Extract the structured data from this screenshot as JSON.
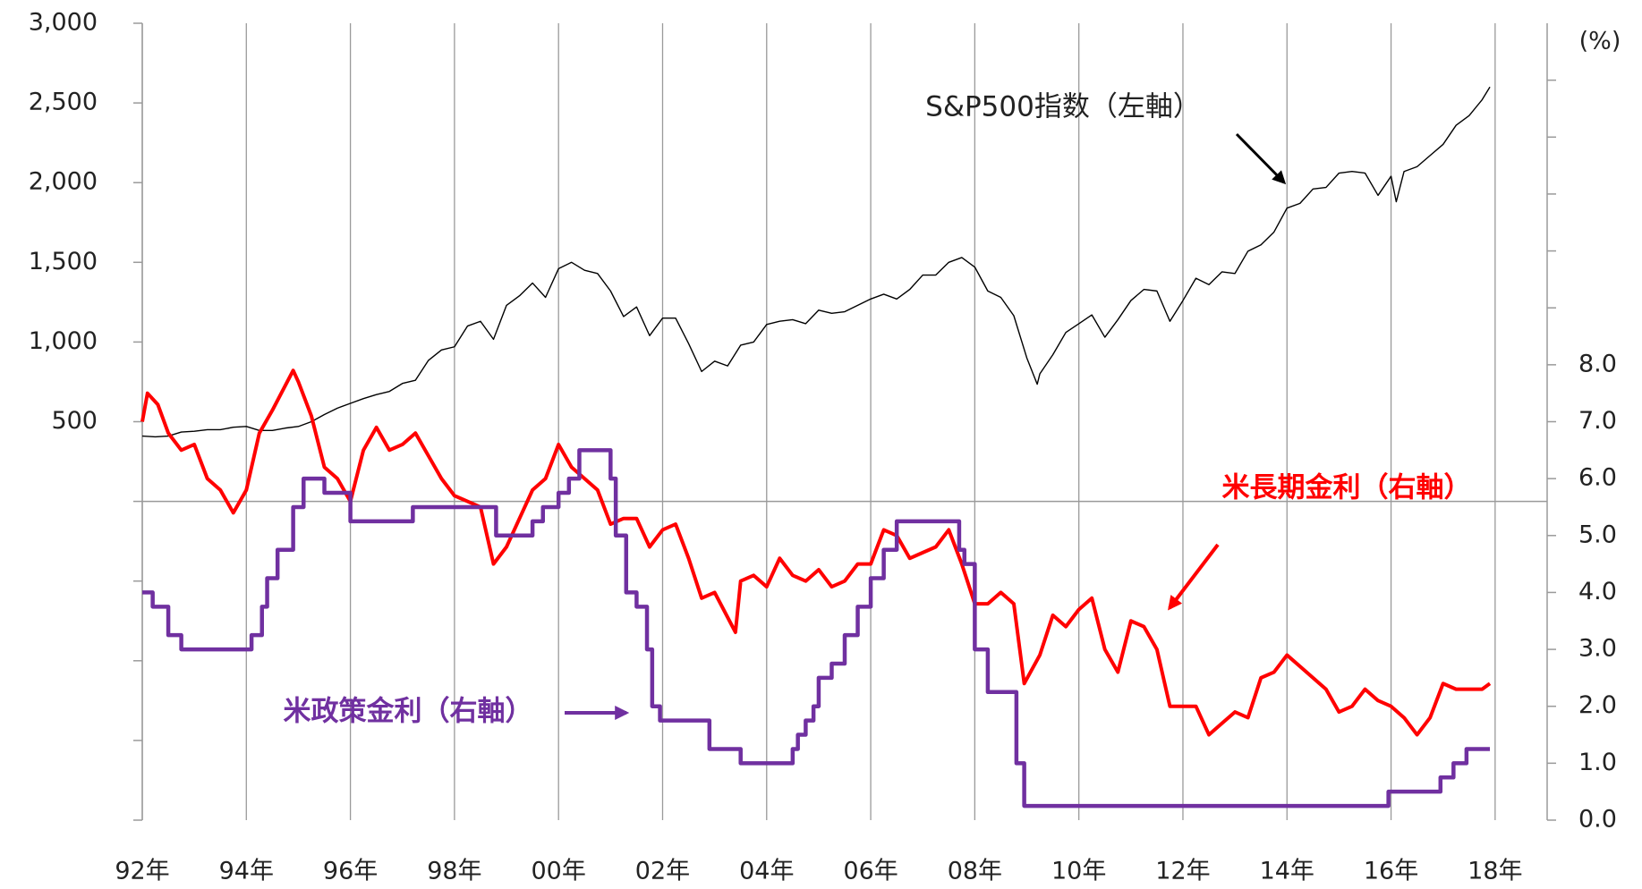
{
  "chart_data": {
    "type": "line",
    "xlim": [
      1992,
      2019
    ],
    "xticks": [
      {
        "value": 1992,
        "label": "92年"
      },
      {
        "value": 1994,
        "label": "94年"
      },
      {
        "value": 1996,
        "label": "96年"
      },
      {
        "value": 1998,
        "label": "98年"
      },
      {
        "value": 2000,
        "label": "00年"
      },
      {
        "value": 2002,
        "label": "02年"
      },
      {
        "value": 2004,
        "label": "04年"
      },
      {
        "value": 2006,
        "label": "06年"
      },
      {
        "value": 2008,
        "label": "08年"
      },
      {
        "value": 2010,
        "label": "10年"
      },
      {
        "value": 2012,
        "label": "12年"
      },
      {
        "value": 2014,
        "label": "14年"
      },
      {
        "value": 2016,
        "label": "16年"
      },
      {
        "value": 2018,
        "label": "18年"
      }
    ],
    "ylim": [
      -2000,
      3000
    ],
    "yticks": [
      500,
      {
        "value": 1000,
        "label": "1,000"
      },
      {
        "value": 1500,
        "label": "1,500"
      },
      {
        "value": 2000,
        "label": "2,000"
      },
      {
        "value": 2500,
        "label": "2,500"
      },
      {
        "value": 3000,
        "label": "3,000"
      }
    ],
    "yticks_unlabeled": [
      -2000,
      -1500,
      -1000,
      -500,
      0
    ],
    "y2lim": [
      0,
      14
    ],
    "y2label": "(%)",
    "y2ticks": [
      {
        "value": 0,
        "label": "0.0"
      },
      {
        "value": 1,
        "label": "1.0"
      },
      {
        "value": 2,
        "label": "2.0"
      },
      {
        "value": 3,
        "label": "3.0"
      },
      {
        "value": 4,
        "label": "4.0"
      },
      {
        "value": 5,
        "label": "5.0"
      },
      {
        "value": 6,
        "label": "6.0"
      },
      {
        "value": 7,
        "label": "7.0"
      },
      {
        "value": 8,
        "label": "8.0"
      }
    ],
    "y2ticks_unlabeled": [
      9,
      10,
      11,
      12,
      13
    ],
    "grid_x": true,
    "series": [
      {
        "name": "S&P500指数（左軸）",
        "color": "#000000",
        "axis": "y",
        "x": [
          1992,
          1992.25,
          1992.5,
          1992.75,
          1993,
          1993.25,
          1993.5,
          1993.75,
          1994,
          1994.25,
          1994.5,
          1994.75,
          1995,
          1995.25,
          1995.5,
          1995.75,
          1996,
          1996.25,
          1996.5,
          1996.75,
          1997,
          1997.25,
          1997.5,
          1997.75,
          1998,
          1998.25,
          1998.5,
          1998.75,
          1999,
          1999.25,
          1999.5,
          1999.75,
          2000,
          2000.25,
          2000.5,
          2000.75,
          2001,
          2001.25,
          2001.5,
          2001.75,
          2002,
          2002.25,
          2002.5,
          2002.75,
          2003,
          2003.25,
          2003.5,
          2003.75,
          2004,
          2004.25,
          2004.5,
          2004.75,
          2005,
          2005.25,
          2005.5,
          2005.75,
          2006,
          2006.25,
          2006.5,
          2006.75,
          2007,
          2007.25,
          2007.5,
          2007.75,
          2008,
          2008.25,
          2008.5,
          2008.75,
          2009,
          2009.2,
          2009.25,
          2009.5,
          2009.75,
          2010,
          2010.25,
          2010.5,
          2010.75,
          2011,
          2011.25,
          2011.5,
          2011.75,
          2012,
          2012.25,
          2012.5,
          2012.75,
          2013,
          2013.25,
          2013.5,
          2013.75,
          2014,
          2014.25,
          2014.5,
          2014.75,
          2015,
          2015.25,
          2015.5,
          2015.75,
          2016,
          2016.1,
          2016.25,
          2016.5,
          2016.75,
          2017,
          2017.25,
          2017.5,
          2017.75,
          2017.9
        ],
        "values": [
          410,
          405,
          410,
          435,
          440,
          450,
          450,
          465,
          470,
          445,
          445,
          460,
          470,
          500,
          545,
          585,
          615,
          645,
          670,
          690,
          740,
          760,
          885,
          950,
          970,
          1100,
          1130,
          1017,
          1230,
          1290,
          1370,
          1280,
          1460,
          1500,
          1450,
          1430,
          1320,
          1160,
          1220,
          1040,
          1150,
          1150,
          990,
          815,
          880,
          850,
          980,
          1000,
          1110,
          1130,
          1140,
          1115,
          1200,
          1180,
          1190,
          1230,
          1270,
          1300,
          1270,
          1330,
          1420,
          1420,
          1500,
          1530,
          1470,
          1320,
          1280,
          1165,
          900,
          735,
          800,
          920,
          1060,
          1115,
          1170,
          1030,
          1140,
          1260,
          1330,
          1320,
          1130,
          1260,
          1400,
          1360,
          1440,
          1430,
          1570,
          1610,
          1690,
          1840,
          1870,
          1960,
          1970,
          2060,
          2070,
          2060,
          1920,
          2040,
          1880,
          2070,
          2100,
          2170,
          2240,
          2360,
          2420,
          2520,
          2600
        ]
      },
      {
        "name": "米長期金利（右軸）",
        "color": "#ff0000",
        "axis": "y2",
        "x": [
          1992,
          1992.1,
          1992.3,
          1992.5,
          1992.75,
          1993,
          1993.25,
          1993.5,
          1993.75,
          1994,
          1994.25,
          1994.5,
          1994.9,
          1995,
          1995.25,
          1995.5,
          1995.75,
          1996,
          1996.25,
          1996.5,
          1996.75,
          1997,
          1997.25,
          1997.5,
          1997.75,
          1998,
          1998.25,
          1998.5,
          1998.75,
          1999,
          1999.25,
          1999.5,
          1999.75,
          2000,
          2000.25,
          2000.5,
          2000.75,
          2001,
          2001.25,
          2001.5,
          2001.75,
          2002,
          2002.25,
          2002.5,
          2002.75,
          2003,
          2003.4,
          2003.5,
          2003.75,
          2004,
          2004.25,
          2004.5,
          2004.75,
          2005,
          2005.25,
          2005.5,
          2005.75,
          2006,
          2006.25,
          2006.5,
          2006.75,
          2007,
          2007.25,
          2007.5,
          2007.75,
          2008,
          2008.25,
          2008.5,
          2008.75,
          2008.95,
          2009.25,
          2009.5,
          2009.75,
          2010,
          2010.25,
          2010.5,
          2010.75,
          2011,
          2011.25,
          2011.5,
          2011.75,
          2012,
          2012.25,
          2012.5,
          2012.75,
          2013,
          2013.25,
          2013.5,
          2013.75,
          2014,
          2014.25,
          2014.5,
          2014.75,
          2015,
          2015.25,
          2015.5,
          2015.75,
          2016,
          2016.25,
          2016.5,
          2016.75,
          2017,
          2017.25,
          2017.5,
          2017.75,
          2017.9
        ],
        "values": [
          7.0,
          7.5,
          7.3,
          6.8,
          6.5,
          6.6,
          6.0,
          5.8,
          5.4,
          5.8,
          6.8,
          7.2,
          7.9,
          7.7,
          7.1,
          6.2,
          6.0,
          5.6,
          6.5,
          6.9,
          6.5,
          6.6,
          6.8,
          6.4,
          6.0,
          5.7,
          5.6,
          5.5,
          4.5,
          4.8,
          5.3,
          5.8,
          6.0,
          6.6,
          6.2,
          6.0,
          5.8,
          5.2,
          5.3,
          5.3,
          4.8,
          5.1,
          5.2,
          4.6,
          3.9,
          4.0,
          3.3,
          4.2,
          4.3,
          4.1,
          4.6,
          4.3,
          4.2,
          4.4,
          4.1,
          4.2,
          4.5,
          4.5,
          5.1,
          5.0,
          4.6,
          4.7,
          4.8,
          5.1,
          4.5,
          3.8,
          3.8,
          4.0,
          3.8,
          2.4,
          2.9,
          3.6,
          3.4,
          3.7,
          3.9,
          3.0,
          2.6,
          3.5,
          3.4,
          3.0,
          2.0,
          2.0,
          2.0,
          1.5,
          1.7,
          1.9,
          1.8,
          2.5,
          2.6,
          2.9,
          2.7,
          2.5,
          2.3,
          1.9,
          2.0,
          2.3,
          2.1,
          2.0,
          1.8,
          1.5,
          1.8,
          2.4,
          2.3,
          2.3,
          2.3,
          2.4
        ]
      },
      {
        "name": "米政策金利（右軸）",
        "color": "#7030a0",
        "axis": "y2",
        "step": "post",
        "x": [
          1992,
          1992.2,
          1992.5,
          1992.75,
          1994.1,
          1994.3,
          1994.4,
          1994.6,
          1994.9,
          1995.1,
          1995.5,
          1996,
          1997.2,
          1998.8,
          1999.5,
          1999.7,
          2000,
          2000.2,
          2000.4,
          2001,
          2001.1,
          2001.3,
          2001.5,
          2001.7,
          2001.8,
          2001.95,
          2002.9,
          2003.5,
          2004.5,
          2004.6,
          2004.75,
          2004.9,
          2005,
          2005.25,
          2005.5,
          2005.75,
          2006,
          2006.25,
          2006.5,
          2007.7,
          2007.8,
          2008,
          2008.25,
          2008.8,
          2008.95,
          2015.95,
          2016.95,
          2017.2,
          2017.45,
          2017.9
        ],
        "values": [
          4.0,
          3.75,
          3.25,
          3.0,
          3.25,
          3.75,
          4.25,
          4.75,
          5.5,
          6.0,
          5.75,
          5.25,
          5.5,
          5.0,
          5.25,
          5.5,
          5.75,
          6.0,
          6.5,
          6.0,
          5.0,
          4.0,
          3.75,
          3.0,
          2.0,
          1.75,
          1.25,
          1.0,
          1.25,
          1.5,
          1.75,
          2.0,
          2.5,
          2.75,
          3.25,
          3.75,
          4.25,
          4.75,
          5.25,
          4.75,
          4.5,
          3.0,
          2.25,
          1.0,
          0.25,
          0.5,
          0.75,
          1.0,
          1.25,
          1.25
        ]
      }
    ]
  }
}
